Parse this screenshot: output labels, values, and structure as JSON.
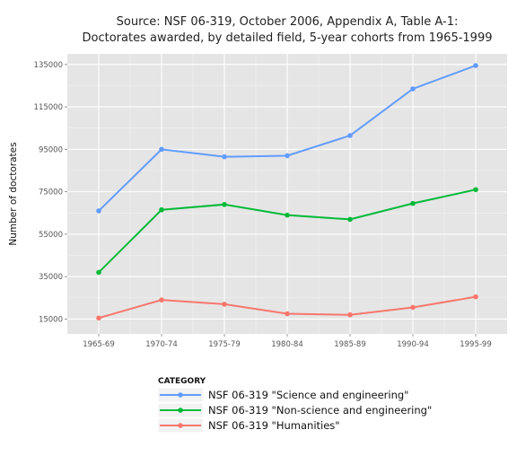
{
  "chart_data": {
    "type": "line",
    "title": "Source: NSF 06-319, October 2006, Appendix A, Table A-1:",
    "subtitle": "Doctorates awarded, by detailed field, 5-year cohorts from 1965-1999",
    "xlabel": "",
    "ylabel": "Number of doctorates",
    "categories": [
      "1965-69",
      "1970-74",
      "1975-79",
      "1980-84",
      "1985-89",
      "1990-94",
      "1995-99"
    ],
    "ylim": [
      8000,
      140000
    ],
    "yticks": [
      15000,
      35000,
      55000,
      75000,
      95000,
      115000,
      135000
    ],
    "grid": true,
    "legend": {
      "title": "CATEGORY",
      "position": "bottom"
    },
    "series": [
      {
        "name": "NSF 06-319 \"Science and engineering\"",
        "color": "#619CFF",
        "values": [
          66000,
          95000,
          91500,
          92000,
          101500,
          123500,
          134500
        ]
      },
      {
        "name": "NSF 06-319 \"Non-science and engineering\"",
        "color": "#00BA38",
        "values": [
          37000,
          66500,
          69000,
          64000,
          62000,
          69500,
          76000
        ]
      },
      {
        "name": "NSF 06-319 \"Humanities\"",
        "color": "#F8766D",
        "values": [
          15500,
          24000,
          22000,
          17500,
          17000,
          20500,
          25500
        ]
      }
    ]
  }
}
